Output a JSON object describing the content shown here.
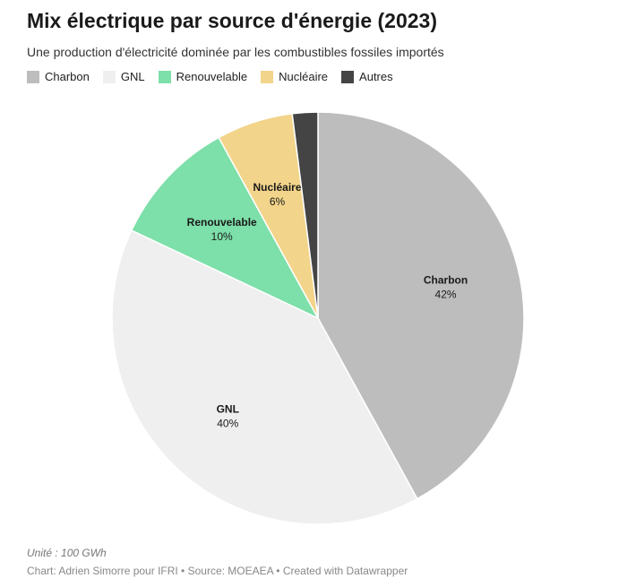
{
  "header": {
    "title": "Mix électrique par source d'énergie (2023)",
    "subtitle": "Une production d'électricité dominée par les combustibles fossiles importés"
  },
  "footer": {
    "unit": "Unité : 100 GWh",
    "credit": "Chart: Adrien Simorre pour IFRI • Source: MOEAEA • Created with Datawrapper"
  },
  "chart_data": {
    "type": "pie",
    "title": "Mix électrique par source d'énergie (2023)",
    "subtitle": "Une production d'électricité dominée par les combustibles fossiles importés",
    "legend_position": "top-left",
    "slices": [
      {
        "label": "Charbon",
        "value": 42,
        "value_label": "42%",
        "color": "#bdbdbd",
        "show_label": true
      },
      {
        "label": "GNL",
        "value": 40,
        "value_label": "40%",
        "color": "#efefef",
        "show_label": true
      },
      {
        "label": "Renouvelable",
        "value": 10,
        "value_label": "10%",
        "color": "#7ddfa9",
        "show_label": true
      },
      {
        "label": "Nucléaire",
        "value": 6,
        "value_label": "6%",
        "color": "#f2d48a",
        "show_label": true
      },
      {
        "label": "Autres",
        "value": 2,
        "value_label": "",
        "color": "#444444",
        "show_label": false
      }
    ]
  }
}
